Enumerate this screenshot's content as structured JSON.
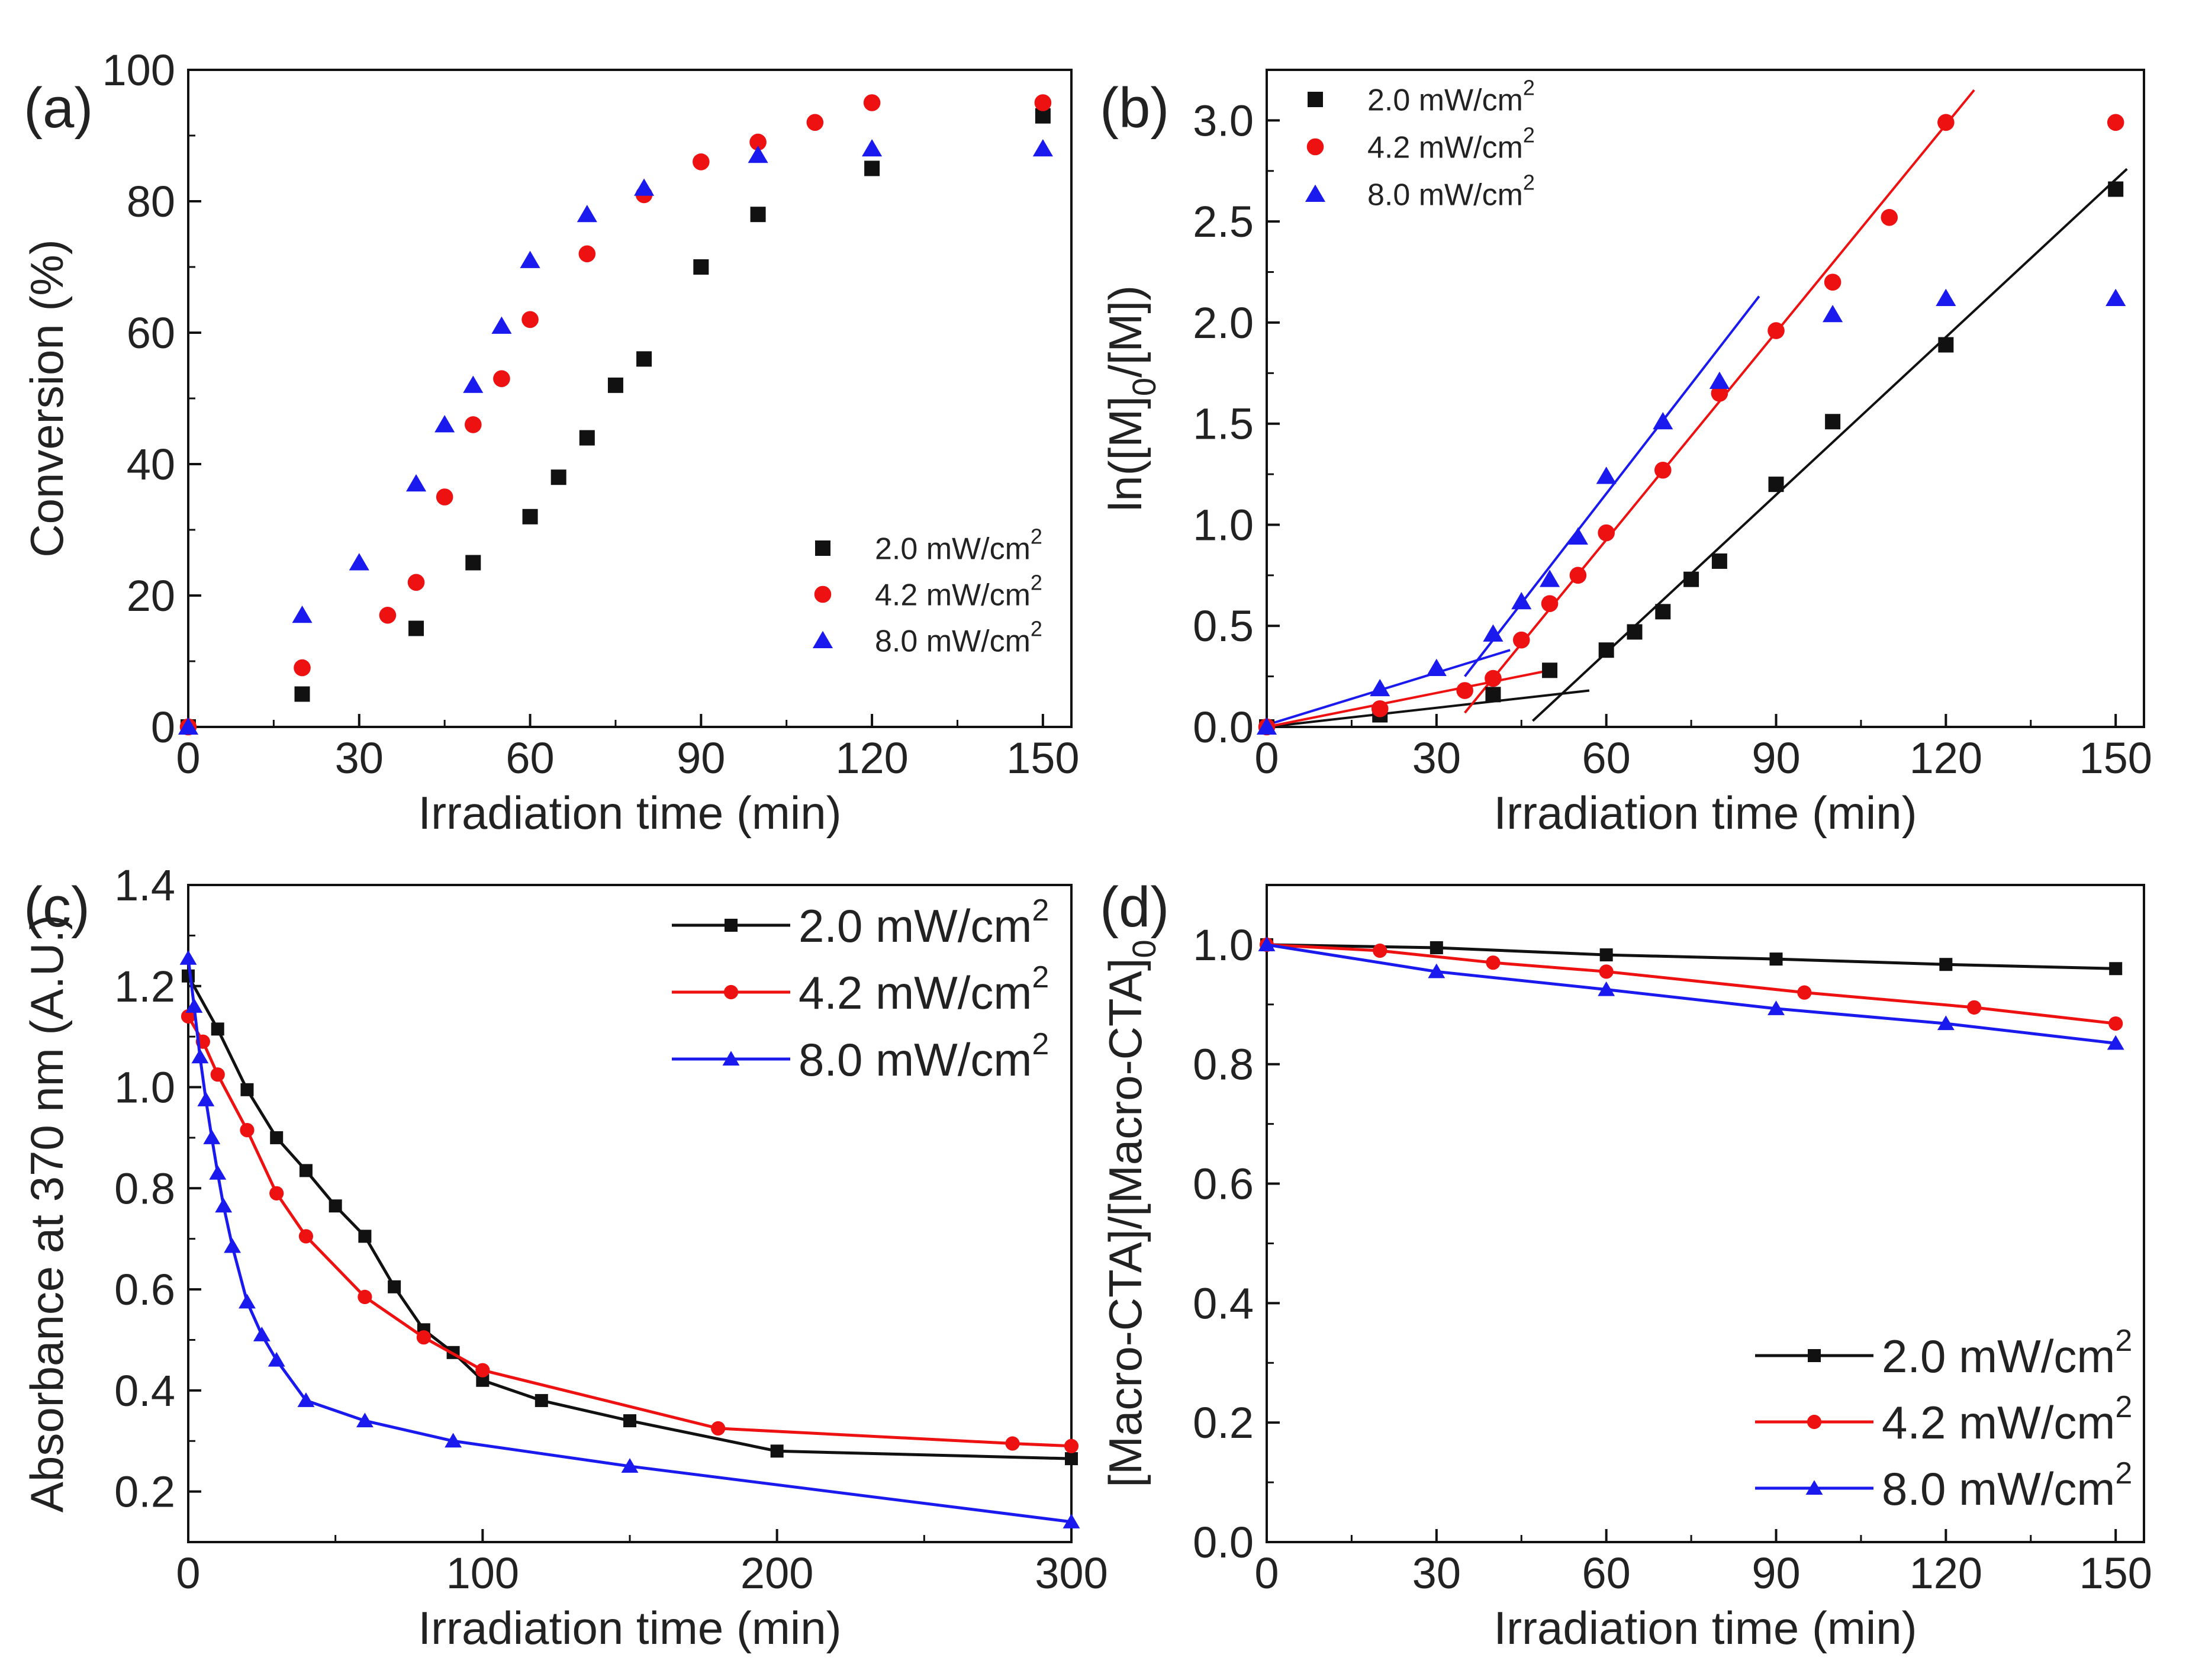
{
  "colors": {
    "black": "#111111",
    "red": "#ee1111",
    "blue": "#1a1aee"
  },
  "chart_data": [
    {
      "id": "a",
      "panel_label": "(a)",
      "type": "scatter",
      "xlabel": "Irradiation time (min)",
      "ylabel": "Conversion (%)",
      "xlim": [
        0,
        155
      ],
      "ylim": [
        0,
        100
      ],
      "xticks": [
        0,
        30,
        60,
        90,
        120,
        150
      ],
      "yticks": [
        0,
        20,
        40,
        60,
        80,
        100
      ],
      "legend_position": "bottom-right",
      "legend_style": "small",
      "series": [
        {
          "name": "2.0 mW/cm²",
          "label": "2.0 mW/cm",
          "sup": "2",
          "color": "#111111",
          "marker": "square",
          "points": [
            [
              0,
              0
            ],
            [
              20,
              5
            ],
            [
              40,
              15
            ],
            [
              50,
              25
            ],
            [
              60,
              32
            ],
            [
              65,
              38
            ],
            [
              70,
              44
            ],
            [
              75,
              52
            ],
            [
              80,
              56
            ],
            [
              90,
              70
            ],
            [
              100,
              78
            ],
            [
              120,
              85
            ],
            [
              150,
              93
            ]
          ]
        },
        {
          "name": "4.2 mW/cm²",
          "label": "4.2 mW/cm",
          "sup": "2",
          "color": "#ee1111",
          "marker": "circle",
          "points": [
            [
              0,
              0
            ],
            [
              20,
              9
            ],
            [
              35,
              17
            ],
            [
              40,
              22
            ],
            [
              45,
              35
            ],
            [
              50,
              46
            ],
            [
              55,
              53
            ],
            [
              60,
              62
            ],
            [
              70,
              72
            ],
            [
              80,
              81
            ],
            [
              90,
              86
            ],
            [
              100,
              89
            ],
            [
              110,
              92
            ],
            [
              120,
              95
            ],
            [
              150,
              95
            ]
          ]
        },
        {
          "name": "8.0 mW/cm²",
          "label": "8.0 mW/cm",
          "sup": "2",
          "color": "#1a1aee",
          "marker": "triangle",
          "points": [
            [
              0,
              0
            ],
            [
              20,
              17
            ],
            [
              30,
              25
            ],
            [
              40,
              37
            ],
            [
              45,
              46
            ],
            [
              50,
              52
            ],
            [
              55,
              61
            ],
            [
              60,
              71
            ],
            [
              70,
              78
            ],
            [
              80,
              82
            ],
            [
              100,
              87
            ],
            [
              120,
              88
            ],
            [
              150,
              88
            ]
          ]
        }
      ]
    },
    {
      "id": "b",
      "panel_label": "(b)",
      "type": "scatter",
      "xlabel": "Irradiation time (min)",
      "ylabel_main": "ln([M]",
      "ylabel_sub": "0",
      "ylabel_tail": "/[M])",
      "xlim": [
        0,
        155
      ],
      "ylim": [
        0,
        3.25
      ],
      "xticks": [
        0,
        30,
        60,
        90,
        120,
        150
      ],
      "yticks": [
        0.0,
        0.5,
        1.0,
        1.5,
        2.0,
        2.5,
        3.0
      ],
      "legend_position": "top-left",
      "legend_style": "small",
      "series": [
        {
          "name": "2.0 mW/cm²",
          "label": "2.0 mW/cm",
          "sup": "2",
          "color": "#111111",
          "marker": "square",
          "points": [
            [
              0,
              0
            ],
            [
              20,
              0.06
            ],
            [
              40,
              0.16
            ],
            [
              50,
              0.28
            ],
            [
              60,
              0.38
            ],
            [
              65,
              0.47
            ],
            [
              70,
              0.57
            ],
            [
              75,
              0.73
            ],
            [
              80,
              0.82
            ],
            [
              90,
              1.2
            ],
            [
              100,
              1.51
            ],
            [
              120,
              1.89
            ],
            [
              150,
              2.66
            ]
          ]
        },
        {
          "name": "4.2 mW/cm²",
          "label": "4.2 mW/cm",
          "sup": "2",
          "color": "#ee1111",
          "marker": "circle",
          "points": [
            [
              0,
              0
            ],
            [
              20,
              0.09
            ],
            [
              35,
              0.18
            ],
            [
              40,
              0.24
            ],
            [
              45,
              0.43
            ],
            [
              50,
              0.61
            ],
            [
              55,
              0.75
            ],
            [
              60,
              0.96
            ],
            [
              70,
              1.27
            ],
            [
              80,
              1.65
            ],
            [
              90,
              1.96
            ],
            [
              100,
              2.2
            ],
            [
              110,
              2.52
            ],
            [
              120,
              2.99
            ],
            [
              150,
              2.99
            ]
          ]
        },
        {
          "name": "8.0 mW/cm²",
          "label": "8.0 mW/cm",
          "sup": "2",
          "color": "#1a1aee",
          "marker": "triangle",
          "points": [
            [
              0,
              0
            ],
            [
              20,
              0.19
            ],
            [
              30,
              0.29
            ],
            [
              40,
              0.46
            ],
            [
              45,
              0.62
            ],
            [
              50,
              0.73
            ],
            [
              55,
              0.94
            ],
            [
              60,
              1.24
            ],
            [
              70,
              1.51
            ],
            [
              80,
              1.71
            ],
            [
              100,
              2.04
            ],
            [
              120,
              2.12
            ],
            [
              150,
              2.12
            ]
          ]
        }
      ],
      "fit_lines": [
        {
          "color": "#111111",
          "from": [
            0,
            0
          ],
          "to": [
            57,
            0.18
          ]
        },
        {
          "color": "#111111",
          "from": [
            47,
            0.03
          ],
          "to": [
            152,
            2.76
          ]
        },
        {
          "color": "#ee1111",
          "from": [
            0,
            0
          ],
          "to": [
            50,
            0.28
          ]
        },
        {
          "color": "#ee1111",
          "from": [
            35,
            0.07
          ],
          "to": [
            125,
            3.15
          ]
        },
        {
          "color": "#1a1aee",
          "from": [
            0,
            0.01
          ],
          "to": [
            43,
            0.38
          ]
        },
        {
          "color": "#1a1aee",
          "from": [
            35,
            0.25
          ],
          "to": [
            87,
            2.13
          ]
        }
      ]
    },
    {
      "id": "c",
      "panel_label": "(c)",
      "type": "line",
      "xlabel": "Irradiation time (min)",
      "ylabel": "Absorbance at 370 nm (A.U.)",
      "xlim": [
        0,
        300
      ],
      "ylim": [
        0.1,
        1.4
      ],
      "xticks": [
        0,
        100,
        200,
        300
      ],
      "yticks": [
        0.2,
        0.4,
        0.6,
        0.8,
        1.0,
        1.2,
        1.4
      ],
      "legend_position": "top-right",
      "legend_style": "large",
      "series": [
        {
          "name": "2.0 mW/cm²",
          "label": "2.0 mW/cm",
          "sup": "2",
          "color": "#111111",
          "marker": "square",
          "points": [
            [
              0,
              1.22
            ],
            [
              10,
              1.115
            ],
            [
              20,
              0.995
            ],
            [
              30,
              0.9
            ],
            [
              40,
              0.835
            ],
            [
              50,
              0.765
            ],
            [
              60,
              0.705
            ],
            [
              70,
              0.605
            ],
            [
              80,
              0.52
            ],
            [
              90,
              0.475
            ],
            [
              100,
              0.42
            ],
            [
              120,
              0.38
            ],
            [
              150,
              0.34
            ],
            [
              200,
              0.28
            ],
            [
              300,
              0.265
            ]
          ]
        },
        {
          "name": "4.2 mW/cm²",
          "label": "4.2 mW/cm",
          "sup": "2",
          "color": "#ee1111",
          "marker": "circle",
          "points": [
            [
              0,
              1.14
            ],
            [
              5,
              1.09
            ],
            [
              10,
              1.025
            ],
            [
              20,
              0.915
            ],
            [
              30,
              0.79
            ],
            [
              40,
              0.705
            ],
            [
              60,
              0.585
            ],
            [
              80,
              0.505
            ],
            [
              100,
              0.44
            ],
            [
              180,
              0.325
            ],
            [
              280,
              0.295
            ],
            [
              300,
              0.29
            ]
          ]
        },
        {
          "name": "8.0 mW/cm²",
          "label": "8.0 mW/cm",
          "sup": "2",
          "color": "#1a1aee",
          "marker": "triangle",
          "points": [
            [
              0,
              1.255
            ],
            [
              2,
              1.16
            ],
            [
              4,
              1.06
            ],
            [
              6,
              0.975
            ],
            [
              8,
              0.9
            ],
            [
              10,
              0.83
            ],
            [
              12,
              0.765
            ],
            [
              15,
              0.685
            ],
            [
              20,
              0.575
            ],
            [
              25,
              0.51
            ],
            [
              30,
              0.46
            ],
            [
              40,
              0.38
            ],
            [
              60,
              0.34
            ],
            [
              90,
              0.3
            ],
            [
              150,
              0.25
            ],
            [
              300,
              0.14
            ]
          ]
        }
      ]
    },
    {
      "id": "d",
      "panel_label": "(d)",
      "type": "line",
      "xlabel": "Irradiation time (min)",
      "ylabel_parts": [
        "[Macro-CTA]/[Macro-CTA]",
        "0"
      ],
      "xlim": [
        0,
        155
      ],
      "ylim": [
        0,
        1.1
      ],
      "xticks": [
        0,
        30,
        60,
        90,
        120,
        150
      ],
      "yticks": [
        0.0,
        0.2,
        0.4,
        0.6,
        0.8,
        1.0
      ],
      "legend_position": "bottom-right",
      "legend_style": "large",
      "series": [
        {
          "name": "2.0 mW/cm²",
          "label": "2.0 mW/cm",
          "sup": "2",
          "color": "#111111",
          "marker": "square",
          "points": [
            [
              0,
              1.0
            ],
            [
              30,
              0.995
            ],
            [
              60,
              0.983
            ],
            [
              90,
              0.976
            ],
            [
              120,
              0.967
            ],
            [
              150,
              0.96
            ]
          ]
        },
        {
          "name": "4.2 mW/cm²",
          "label": "4.2 mW/cm",
          "sup": "2",
          "color": "#ee1111",
          "marker": "circle",
          "points": [
            [
              0,
              1.0
            ],
            [
              20,
              0.99
            ],
            [
              40,
              0.97
            ],
            [
              60,
              0.955
            ],
            [
              95,
              0.92
            ],
            [
              125,
              0.895
            ],
            [
              150,
              0.868
            ]
          ]
        },
        {
          "name": "8.0 mW/cm²",
          "label": "8.0 mW/cm",
          "sup": "2",
          "color": "#1a1aee",
          "marker": "triangle",
          "points": [
            [
              0,
              1.0
            ],
            [
              30,
              0.955
            ],
            [
              60,
              0.925
            ],
            [
              90,
              0.893
            ],
            [
              120,
              0.868
            ],
            [
              150,
              0.835
            ]
          ]
        }
      ]
    }
  ]
}
